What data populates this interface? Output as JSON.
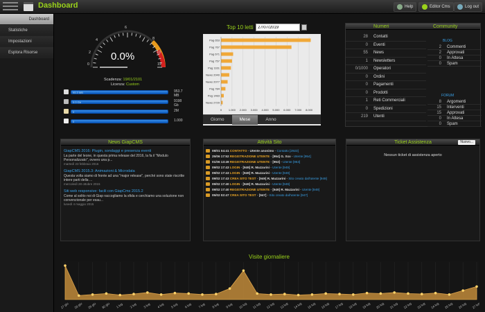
{
  "header": {
    "title": "Dashboard",
    "help_label": "Help",
    "editor_label": "Editor Cms",
    "logout_label": "Log out"
  },
  "sidebar": {
    "items": [
      {
        "label": "Dashboard",
        "active": true
      },
      {
        "label": "Statistiche",
        "active": false
      },
      {
        "label": "Impostazioni",
        "active": false
      },
      {
        "label": "Esplora Risorse",
        "active": false
      }
    ]
  },
  "gauge": {
    "value_label": "0.0%",
    "ticks": [
      "0",
      "2",
      "4",
      "6",
      "8",
      "10",
      "12"
    ],
    "expiry_label": "Scadenza:",
    "expiry_value": "19/01/2101",
    "license_label": "Licenza:",
    "license_value": "Custom"
  },
  "usage_bars": [
    {
      "icon": "database-icon",
      "inner_label": "95.3 MB",
      "value": "953.7 MB",
      "fill": 1.0
    },
    {
      "icon": "disk-icon",
      "inner_label": "0.0 Gb",
      "value": "9198 Gb",
      "fill": 1.0
    },
    {
      "icon": "file-icon",
      "inner_label": "0",
      "value": "2M",
      "fill": 1.0
    },
    {
      "icon": "mail-icon",
      "inner_label": "0",
      "value": "1.000",
      "fill": 1.0
    }
  ],
  "top10": {
    "title": "Top 10 letti",
    "date": "27/07/2019",
    "tabs": [
      "Giorno",
      "Mese",
      "Anno"
    ],
    "active_tab": "Mese"
  },
  "chart_data": [
    {
      "type": "bar",
      "orientation": "horizontal",
      "categories": [
        "Pag 653",
        "Pag 767",
        "Pag 671",
        "Pag 757",
        "Pag 1161",
        "News 2040",
        "News 2077",
        "Pag 784",
        "Pag 1483",
        "News 2729"
      ],
      "values": [
        8150,
        6400,
        1100,
        1000,
        900,
        750,
        600,
        400,
        250,
        150
      ],
      "xticks": [
        "0",
        "1.000",
        "2.000",
        "3.000",
        "4.000",
        "5.000",
        "6.000",
        "7.000",
        "8.000"
      ],
      "xlim": [
        0,
        8750
      ],
      "color": "#f0a838"
    },
    {
      "type": "area",
      "title": "Visite giornaliere",
      "x": [
        "27 giu",
        "28 giu",
        "29 giu",
        "30 giu",
        "1 lug",
        "2 lug",
        "3 lug",
        "4 lug",
        "5 lug",
        "6 lug",
        "7 lug",
        "8 lug",
        "9 lug",
        "10 lug",
        "11 lug",
        "12 lug",
        "13 lug",
        "14 lug",
        "15 lug",
        "16 lug",
        "17 lug",
        "18 lug",
        "19 lug",
        "20 lug",
        "21 lug",
        "22 lug",
        "23 lug",
        "24 lug",
        "25 lug",
        "26 lug",
        "27 lug"
      ],
      "values": [
        68,
        8,
        10,
        12,
        9,
        11,
        14,
        10,
        13,
        12,
        10,
        11,
        22,
        58,
        12,
        10,
        11,
        9,
        10,
        12,
        11,
        10,
        13,
        12,
        14,
        12,
        11,
        13,
        10,
        18,
        26
      ],
      "ylim": [
        0,
        75
      ],
      "color": "#c08a3a"
    }
  ],
  "counts": {
    "left_header": "Numeri",
    "right_header": "Community",
    "rows": [
      {
        "value": "28",
        "label": "Contatti"
      },
      {
        "value": "0",
        "label": "Eventi"
      },
      {
        "value": "55",
        "label": "News"
      },
      {
        "value": "1",
        "label": "Newsletters"
      },
      {
        "value": "0/1000",
        "label": "Operatori"
      },
      {
        "value": "0",
        "label": "Ordini"
      },
      {
        "value": "0",
        "label": "Pagamenti"
      },
      {
        "value": "0",
        "label": "Prodotti"
      },
      {
        "value": "1",
        "label": "Reti Commerciali"
      },
      {
        "value": "0",
        "label": "Spedizioni"
      },
      {
        "value": "219",
        "label": "Utenti"
      }
    ],
    "blog_title": "BLOG",
    "blog": [
      {
        "value": "2",
        "label": "Commenti"
      },
      {
        "value": "2",
        "label": "Approvati"
      },
      {
        "value": "0",
        "label": "In Attesa"
      },
      {
        "value": "0",
        "label": "Spam"
      }
    ],
    "forum_title": "FORUM",
    "forum": [
      {
        "value": "8",
        "label": "Argomenti"
      },
      {
        "value": "15",
        "label": "Interventi"
      },
      {
        "value": "15",
        "label": "Approvati"
      },
      {
        "value": "0",
        "label": "In Attesa"
      },
      {
        "value": "0",
        "label": "Spam"
      }
    ]
  },
  "news": {
    "title": "News GiapCMS",
    "items": [
      {
        "title": "GiapCMS 2016: Plugin, sondaggi e presenza eventi",
        "body": "La parte del leone, in questa prima release del 2016, la fa il \"Modulo Personalizzato\", ovvero una p...",
        "date": "martedì 23 febbraio 2016"
      },
      {
        "title": "GiapCMS 2015.3: Animazioni & Microdata",
        "body": "Questa volta siamo di fronte ad una \"major release\", perché sono state riscritte intere parti della ...",
        "date": "mercoledì 28 ottobre 2015"
      },
      {
        "title": "Siti web responsive: facili con GiapCms 2015.2",
        "body": "Come al solito noi di Giap raccogliamo la sfida e cerchiamo una soluzione non convenzionale per esau...",
        "date": "lunedì 4 maggio 2015"
      }
    ]
  },
  "activity": {
    "title": "Attività Sito",
    "rows": [
      {
        "time": "08/01 04:41",
        "type": "CONTATTO",
        "user": "Utente anonimo",
        "detail": "Contatto [2923]"
      },
      {
        "time": "25/06 17:52",
        "type": "REGISTRAZIONE UTENTE",
        "user": "[954] G. Xxx",
        "detail": "Utente [954]"
      },
      {
        "time": "01/06 13:49",
        "type": "REGISTRAZIONE UTENTE",
        "user": "[953]",
        "detail": "Utente [953]"
      },
      {
        "time": "09/02 17:43",
        "type": "LOGIN",
        "user": "[949] R. Mazzarini",
        "detail": "Utente [949]"
      },
      {
        "time": "09/02 17:43",
        "type": "LOGIN",
        "user": "[949] R. Mazzarini",
        "detail": "Utente [949]"
      },
      {
        "time": "09/02 17:43",
        "type": "CREA SITO TEST",
        "user": "[949] R. Mazzarini",
        "detail": "Sito creato dall'utente [949]"
      },
      {
        "time": "09/02 17:40",
        "type": "LOGIN",
        "user": "[949] R. Mazzarini",
        "detail": "Utente [949]"
      },
      {
        "time": "09/02 17:40",
        "type": "REGISTRAZIONE UTENTE",
        "user": "[949] R. Mazzarini",
        "detail": "Utente [949]"
      },
      {
        "time": "05/02 02:47",
        "type": "CREA SITO TEST",
        "user": "[947]",
        "detail": "Sito creato dall'utente [947]"
      }
    ]
  },
  "tickets": {
    "title": "Ticket Assistenza",
    "new_label": "Nuovo...",
    "empty_text": "Nessun ticket di assistenza aperto"
  }
}
